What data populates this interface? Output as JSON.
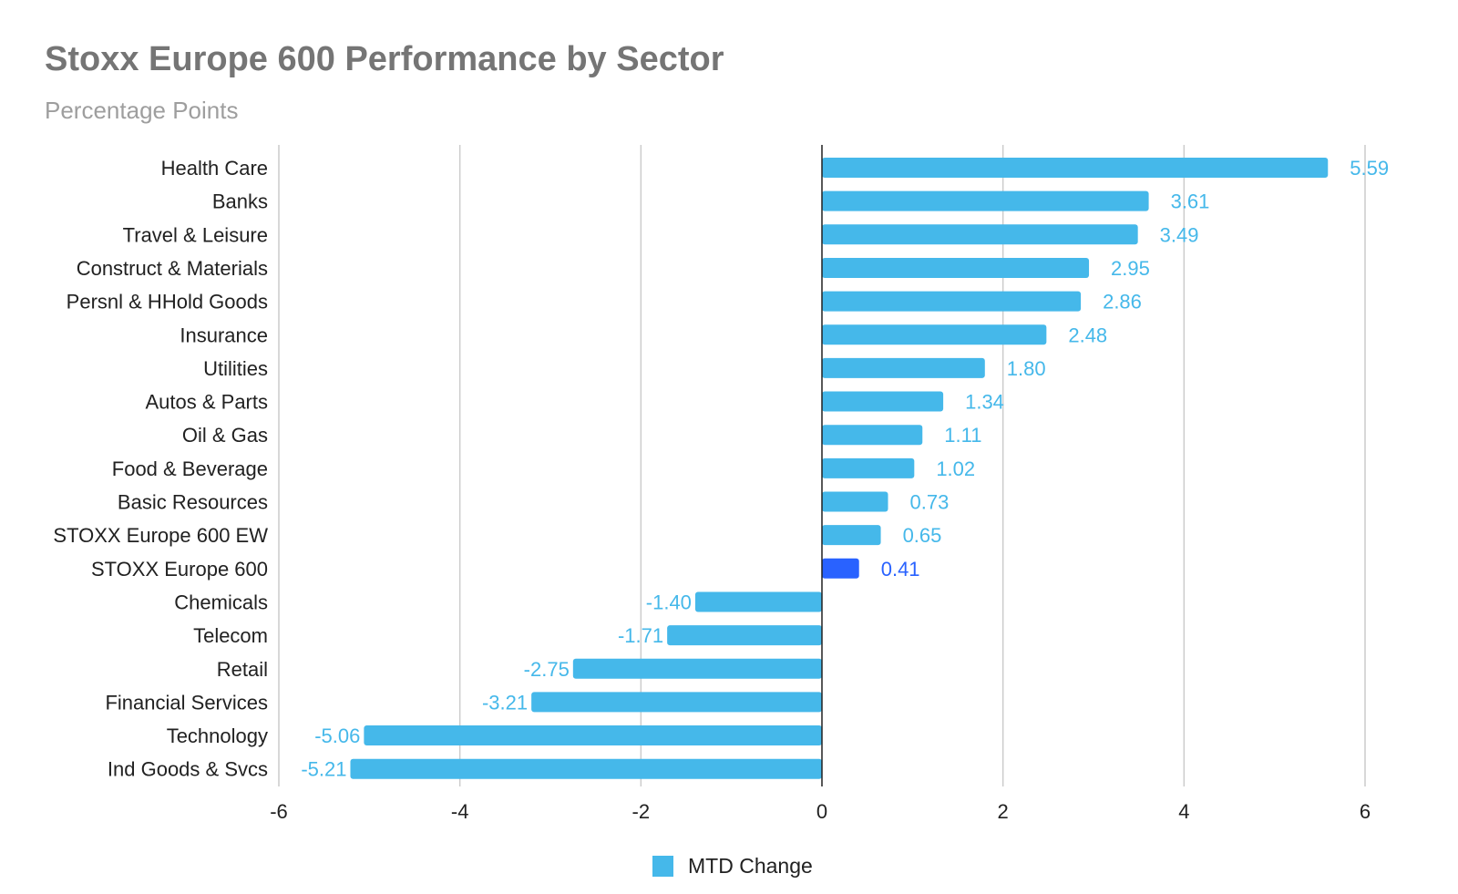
{
  "chart_data": {
    "type": "bar",
    "orientation": "horizontal",
    "title": "Stoxx Europe 600 Performance by Sector",
    "subtitle": "Percentage Points",
    "xlabel": "",
    "ylabel": "",
    "xlim": [
      -6,
      6
    ],
    "x_ticks": [
      -6,
      -4,
      -2,
      0,
      2,
      4,
      6
    ],
    "grid": true,
    "legend_position": "bottom",
    "categories": [
      "Health Care",
      "Banks",
      "Travel & Leisure",
      "Construct & Materials",
      "Persnl & HHold Goods",
      "Insurance",
      "Utilities",
      "Autos & Parts",
      "Oil & Gas",
      "Food & Beverage",
      "Basic Resources",
      "STOXX Europe 600 EW",
      "STOXX Europe 600",
      "Chemicals",
      "Telecom",
      "Retail",
      "Financial Services",
      "Technology",
      "Ind Goods & Svcs"
    ],
    "series": [
      {
        "name": "MTD Change",
        "color": "#45b8ea",
        "values": [
          5.59,
          3.61,
          3.49,
          2.95,
          2.86,
          2.48,
          1.8,
          1.34,
          1.11,
          1.02,
          0.73,
          0.65,
          0.41,
          -1.4,
          -1.71,
          -2.75,
          -3.21,
          -5.06,
          -5.21
        ],
        "labels": [
          "5.59",
          "3.61",
          "3.49",
          "2.95",
          "2.86",
          "2.48",
          "1.80",
          "1.34",
          "1.11",
          "1.02",
          "0.73",
          "0.65",
          "0.41",
          "-1.40",
          "-1.71",
          "-2.75",
          "-3.21",
          "-5.06",
          "-5.21"
        ]
      }
    ],
    "highlight": {
      "category": "STOXX Europe 600",
      "color": "#2962ff"
    }
  }
}
